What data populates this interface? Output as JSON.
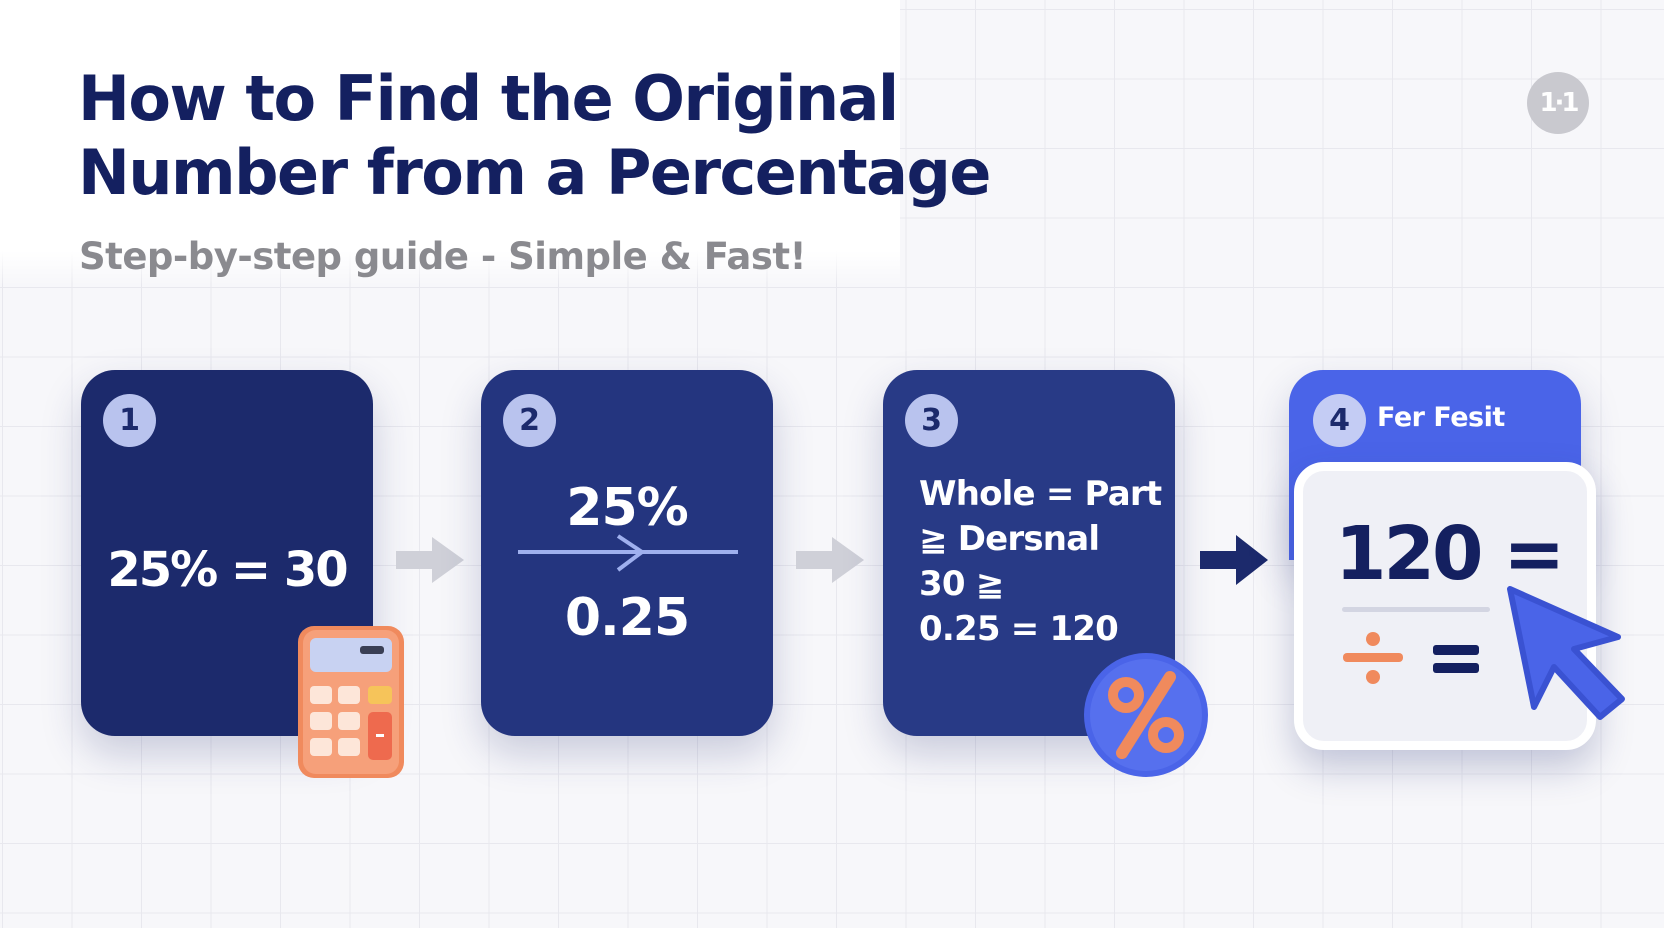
{
  "header": {
    "title_line1": "How to Find the Original",
    "title_line2": "Number from a Percentage",
    "subtitle": "Step-by-step guide - Simple & Fast!",
    "badge": "1·1"
  },
  "steps": [
    {
      "number": "1",
      "equation": "25% = 30",
      "icon": "calculator-icon"
    },
    {
      "number": "2",
      "top": "25%",
      "bottom": "0.25",
      "icon": "arrow-line-icon"
    },
    {
      "number": "3",
      "lines": [
        "Whole = Part",
        "≧ Dersnal",
        "30 ≧",
        "0.25 = 120"
      ],
      "icon": "percent-icon"
    },
    {
      "number": "4",
      "label": "Fer Fesit",
      "value": "120 =",
      "icon": "cursor-icon"
    }
  ],
  "colors": {
    "navy": "#1c2a6c",
    "accent_blue": "#4a64e8",
    "orange": "#f08a5d",
    "title": "#142060",
    "subtitle": "#8a8a8f"
  }
}
